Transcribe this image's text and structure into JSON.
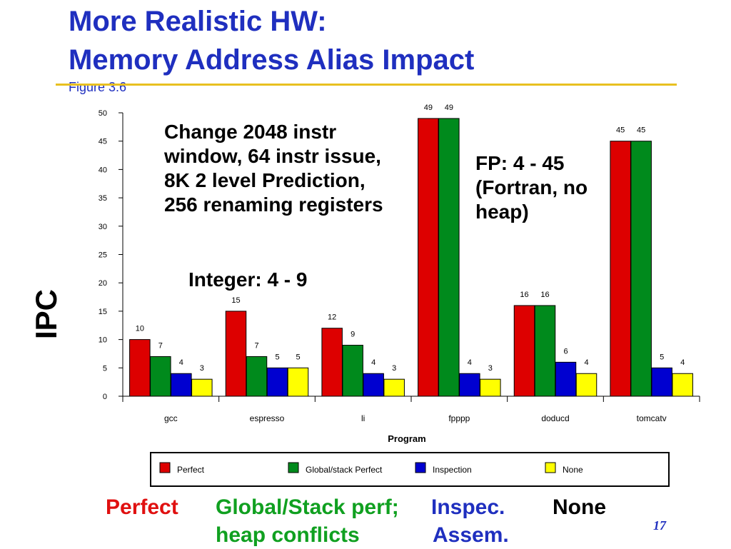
{
  "slide": {
    "title_line1": "More Realistic HW:",
    "title_line2": "Memory Address Alias Impact",
    "figure_ref": "Figure 3.6",
    "page_number": "17"
  },
  "annotations": {
    "change": "Change  2048 instr window, 64 instr issue, 8K 2 level Prediction, 256 renaming registers",
    "integer_range": "Integer: 4 - 9",
    "fp_range": "FP: 4 - 45 (Fortran, no heap)",
    "ipc": "IPC"
  },
  "footer": {
    "perfect": "Perfect",
    "global_line1": "Global/Stack perf;",
    "global_line2": "heap conflicts",
    "inspec_line1": "Inspec.",
    "inspec_line2": "Assem.",
    "none": "None"
  },
  "chart_data": {
    "type": "bar",
    "xlabel": "Program",
    "ylabel": "",
    "ylim": [
      0,
      50
    ],
    "yticks": [
      0,
      5,
      10,
      15,
      20,
      25,
      30,
      35,
      40,
      45,
      50
    ],
    "categories": [
      "gcc",
      "espresso",
      "li",
      "fpppp",
      "doducd",
      "tomcatv"
    ],
    "series": [
      {
        "name": "Perfect",
        "color": "#dd0000",
        "values": [
          10,
          15,
          12,
          49,
          16,
          45
        ]
      },
      {
        "name": "Global/stack Perfect",
        "color": "#008a1c",
        "values": [
          7,
          7,
          9,
          49,
          16,
          45
        ]
      },
      {
        "name": "Inspection",
        "color": "#0000d0",
        "values": [
          4,
          5,
          4,
          4,
          6,
          5
        ]
      },
      {
        "name": "None",
        "color": "#ffff00",
        "values": [
          3,
          5,
          3,
          3,
          4,
          4
        ]
      }
    ],
    "legend_position": "bottom",
    "grid": false
  }
}
